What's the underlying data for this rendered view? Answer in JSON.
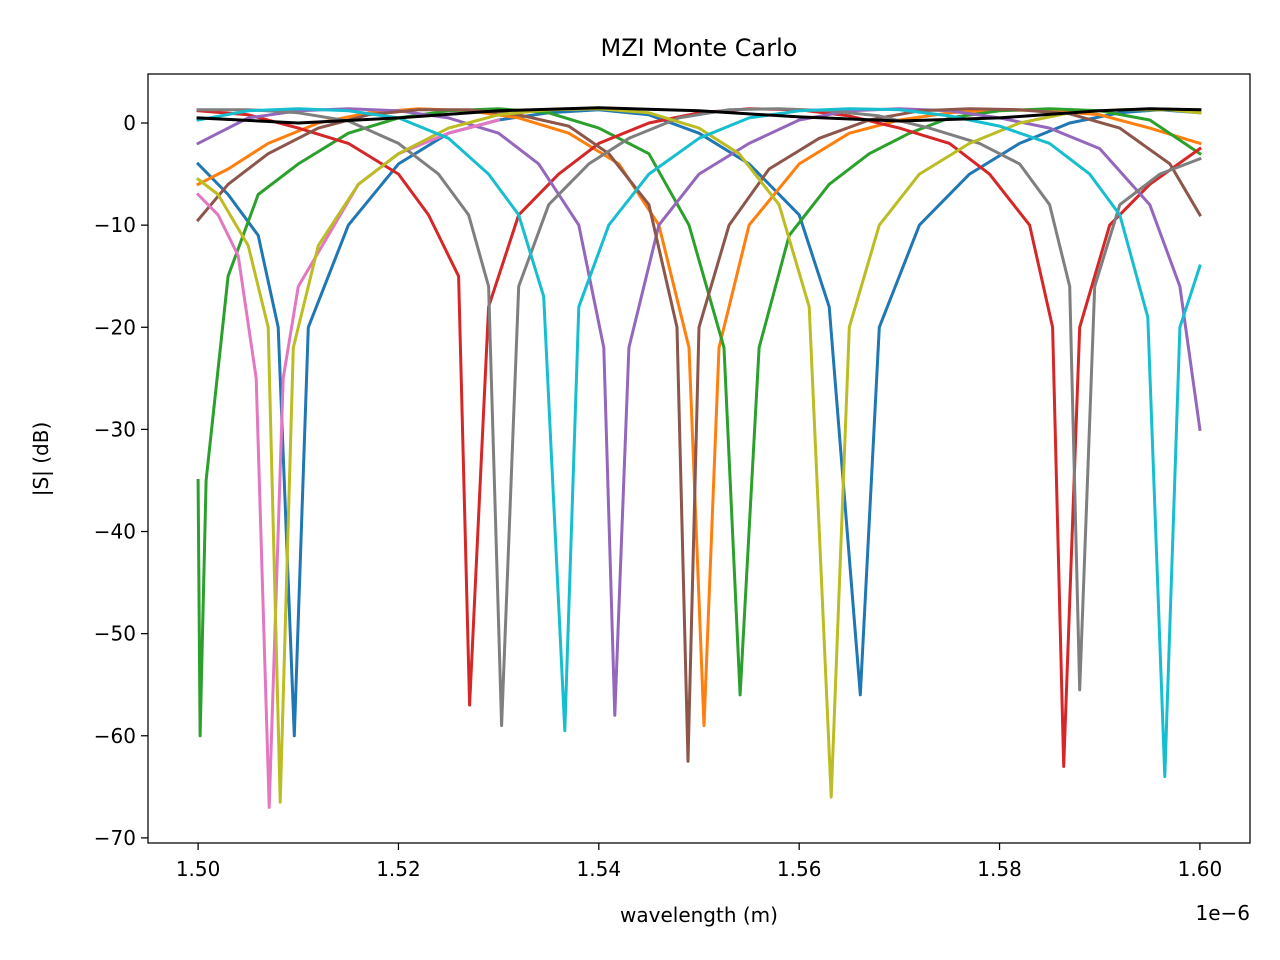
{
  "chart_data": {
    "type": "line",
    "title": "MZI Monte Carlo",
    "xlabel": "wavelength (m)",
    "ylabel": "|S| (dB)",
    "x_offset_label": "1e−6",
    "xlim": [
      1.495,
      1.605
    ],
    "ylim": [
      -70.5,
      4.8
    ],
    "x_ticks": [
      1.5,
      1.52,
      1.54,
      1.56,
      1.58,
      1.6
    ],
    "x_tick_labels": [
      "1.50",
      "1.52",
      "1.54",
      "1.56",
      "1.58",
      "1.60"
    ],
    "y_ticks": [
      0,
      -10,
      -20,
      -30,
      -40,
      -50,
      -60,
      -70
    ],
    "y_tick_labels": [
      "0",
      "−10",
      "−20",
      "−30",
      "−40",
      "−50",
      "−60",
      "−70"
    ],
    "grid": false,
    "series": [
      {
        "color": "#1f77b4",
        "values": [
          [
            1.5,
            -4
          ],
          [
            1.503,
            -7
          ],
          [
            1.506,
            -11
          ],
          [
            1.508,
            -20
          ],
          [
            1.5096,
            -60
          ],
          [
            1.511,
            -20
          ],
          [
            1.515,
            -10
          ],
          [
            1.52,
            -4
          ],
          [
            1.525,
            -1
          ],
          [
            1.53,
            0.3
          ],
          [
            1.535,
            1
          ],
          [
            1.54,
            1.3
          ],
          [
            1.545,
            0.8
          ],
          [
            1.55,
            -1
          ],
          [
            1.555,
            -4
          ],
          [
            1.56,
            -9
          ],
          [
            1.563,
            -18
          ],
          [
            1.5661,
            -56
          ],
          [
            1.568,
            -20
          ],
          [
            1.572,
            -10
          ],
          [
            1.577,
            -5
          ],
          [
            1.582,
            -2
          ],
          [
            1.587,
            0
          ],
          [
            1.592,
            1
          ],
          [
            1.596,
            1.3
          ],
          [
            1.6,
            1
          ]
        ]
      },
      {
        "color": "#ff7f0e",
        "values": [
          [
            1.5,
            -6
          ],
          [
            1.503,
            -4.5
          ],
          [
            1.507,
            -2
          ],
          [
            1.512,
            0
          ],
          [
            1.517,
            1
          ],
          [
            1.522,
            1.4
          ],
          [
            1.527,
            1.2
          ],
          [
            1.532,
            0.5
          ],
          [
            1.537,
            -1
          ],
          [
            1.542,
            -4
          ],
          [
            1.546,
            -10
          ],
          [
            1.549,
            -22
          ],
          [
            1.5505,
            -59
          ],
          [
            1.552,
            -22
          ],
          [
            1.555,
            -10
          ],
          [
            1.56,
            -4
          ],
          [
            1.565,
            -1
          ],
          [
            1.57,
            0.3
          ],
          [
            1.575,
            1
          ],
          [
            1.58,
            1.3
          ],
          [
            1.585,
            1.2
          ],
          [
            1.59,
            0.8
          ],
          [
            1.595,
            -0.5
          ],
          [
            1.6,
            -2
          ]
        ]
      },
      {
        "color": "#2ca02c",
        "values": [
          [
            1.5,
            -35
          ],
          [
            1.5002,
            -60
          ],
          [
            1.5008,
            -35
          ],
          [
            1.503,
            -15
          ],
          [
            1.506,
            -7
          ],
          [
            1.51,
            -4
          ],
          [
            1.515,
            -1
          ],
          [
            1.52,
            0.5
          ],
          [
            1.525,
            1.2
          ],
          [
            1.53,
            1.4
          ],
          [
            1.535,
            1
          ],
          [
            1.54,
            -0.5
          ],
          [
            1.545,
            -3
          ],
          [
            1.549,
            -10
          ],
          [
            1.5525,
            -22
          ],
          [
            1.5541,
            -56
          ],
          [
            1.556,
            -22
          ],
          [
            1.559,
            -11
          ],
          [
            1.563,
            -6
          ],
          [
            1.567,
            -3
          ],
          [
            1.571,
            -1
          ],
          [
            1.575,
            0.5
          ],
          [
            1.58,
            1.2
          ],
          [
            1.585,
            1.4
          ],
          [
            1.59,
            1.2
          ],
          [
            1.595,
            0.3
          ],
          [
            1.6,
            -3
          ]
        ]
      },
      {
        "color": "#d62728",
        "values": [
          [
            1.5,
            1.2
          ],
          [
            1.505,
            0.8
          ],
          [
            1.51,
            -0.5
          ],
          [
            1.515,
            -2
          ],
          [
            1.52,
            -5
          ],
          [
            1.523,
            -9
          ],
          [
            1.526,
            -15
          ],
          [
            1.5271,
            -57
          ],
          [
            1.529,
            -18
          ],
          [
            1.532,
            -9
          ],
          [
            1.536,
            -5
          ],
          [
            1.54,
            -2
          ],
          [
            1.545,
            0
          ],
          [
            1.55,
            1
          ],
          [
            1.555,
            1.4
          ],
          [
            1.56,
            1.3
          ],
          [
            1.565,
            0.7
          ],
          [
            1.57,
            -0.5
          ],
          [
            1.575,
            -2
          ],
          [
            1.579,
            -5
          ],
          [
            1.583,
            -10
          ],
          [
            1.5853,
            -20
          ],
          [
            1.5864,
            -63
          ],
          [
            1.588,
            -20
          ],
          [
            1.591,
            -10
          ],
          [
            1.595,
            -6
          ],
          [
            1.6,
            -2.5
          ]
        ]
      },
      {
        "color": "#9467bd",
        "values": [
          [
            1.5,
            -2
          ],
          [
            1.505,
            0.5
          ],
          [
            1.51,
            1.2
          ],
          [
            1.515,
            1.4
          ],
          [
            1.52,
            1.2
          ],
          [
            1.525,
            0.5
          ],
          [
            1.53,
            -1
          ],
          [
            1.534,
            -4
          ],
          [
            1.538,
            -10
          ],
          [
            1.5405,
            -22
          ],
          [
            1.5416,
            -58
          ],
          [
            1.543,
            -22
          ],
          [
            1.546,
            -10
          ],
          [
            1.55,
            -5
          ],
          [
            1.555,
            -2
          ],
          [
            1.56,
            0.3
          ],
          [
            1.565,
            1.2
          ],
          [
            1.57,
            1.4
          ],
          [
            1.575,
            1.2
          ],
          [
            1.58,
            0.5
          ],
          [
            1.585,
            -0.5
          ],
          [
            1.59,
            -2.5
          ],
          [
            1.595,
            -8
          ],
          [
            1.598,
            -16
          ],
          [
            1.6,
            -30
          ]
        ]
      },
      {
        "color": "#8c564b",
        "values": [
          [
            1.5,
            -9.5
          ],
          [
            1.503,
            -6
          ],
          [
            1.507,
            -3
          ],
          [
            1.512,
            -0.5
          ],
          [
            1.517,
            0.8
          ],
          [
            1.522,
            1.3
          ],
          [
            1.527,
            1.3
          ],
          [
            1.532,
            0.8
          ],
          [
            1.537,
            -0.3
          ],
          [
            1.541,
            -3
          ],
          [
            1.545,
            -8
          ],
          [
            1.5478,
            -20
          ],
          [
            1.5489,
            -62.5
          ],
          [
            1.55,
            -20
          ],
          [
            1.553,
            -10
          ],
          [
            1.557,
            -4.5
          ],
          [
            1.562,
            -1.5
          ],
          [
            1.567,
            0.3
          ],
          [
            1.572,
            1.2
          ],
          [
            1.577,
            1.4
          ],
          [
            1.582,
            1.3
          ],
          [
            1.587,
            0.9
          ],
          [
            1.592,
            -0.5
          ],
          [
            1.597,
            -4
          ],
          [
            1.6,
            -9
          ]
        ]
      },
      {
        "color": "#e377c2",
        "values": [
          [
            1.5,
            -7
          ],
          [
            1.502,
            -9
          ],
          [
            1.504,
            -13
          ],
          [
            1.5058,
            -25
          ],
          [
            1.5071,
            -67
          ],
          [
            1.5085,
            -25
          ],
          [
            1.51,
            -16
          ],
          [
            1.513,
            -11
          ],
          [
            1.516,
            -6
          ],
          [
            1.52,
            -3
          ],
          [
            1.525,
            -1
          ],
          [
            1.53,
            0.3
          ]
        ]
      },
      {
        "color": "#7f7f7f",
        "values": [
          [
            1.5,
            1.3
          ],
          [
            1.505,
            1.3
          ],
          [
            1.51,
            1
          ],
          [
            1.515,
            0.2
          ],
          [
            1.52,
            -2
          ],
          [
            1.524,
            -5
          ],
          [
            1.527,
            -9
          ],
          [
            1.529,
            -16
          ],
          [
            1.5303,
            -59
          ],
          [
            1.532,
            -16
          ],
          [
            1.535,
            -8
          ],
          [
            1.539,
            -4
          ],
          [
            1.543,
            -1.5
          ],
          [
            1.548,
            0.5
          ],
          [
            1.553,
            1.3
          ],
          [
            1.558,
            1.4
          ],
          [
            1.563,
            1.2
          ],
          [
            1.568,
            0.7
          ],
          [
            1.573,
            -0.5
          ],
          [
            1.578,
            -2
          ],
          [
            1.582,
            -4
          ],
          [
            1.585,
            -8
          ],
          [
            1.587,
            -16
          ],
          [
            1.588,
            -55.5
          ],
          [
            1.5895,
            -16
          ],
          [
            1.592,
            -8
          ],
          [
            1.596,
            -5
          ],
          [
            1.6,
            -3.5
          ]
        ]
      },
      {
        "color": "#bcbd22",
        "values": [
          [
            1.5,
            -5.5
          ],
          [
            1.502,
            -7
          ],
          [
            1.505,
            -12
          ],
          [
            1.507,
            -20
          ],
          [
            1.5082,
            -66.5
          ],
          [
            1.5095,
            -22
          ],
          [
            1.512,
            -12
          ],
          [
            1.516,
            -6
          ],
          [
            1.52,
            -3
          ],
          [
            1.525,
            -0.5
          ],
          [
            1.53,
            0.8
          ],
          [
            1.535,
            1.3
          ],
          [
            1.54,
            1.4
          ],
          [
            1.545,
            1
          ],
          [
            1.55,
            -0.5
          ],
          [
            1.554,
            -3
          ],
          [
            1.558,
            -8
          ],
          [
            1.561,
            -18
          ],
          [
            1.5632,
            -66
          ],
          [
            1.565,
            -20
          ],
          [
            1.568,
            -10
          ],
          [
            1.572,
            -5
          ],
          [
            1.577,
            -2
          ],
          [
            1.582,
            0
          ],
          [
            1.587,
            1
          ],
          [
            1.592,
            1.3
          ],
          [
            1.597,
            1.3
          ],
          [
            1.6,
            1
          ]
        ]
      },
      {
        "color": "#17becf",
        "values": [
          [
            1.5,
            0.3
          ],
          [
            1.505,
            1.2
          ],
          [
            1.51,
            1.4
          ],
          [
            1.515,
            1.2
          ],
          [
            1.52,
            0.5
          ],
          [
            1.525,
            -1.5
          ],
          [
            1.529,
            -5
          ],
          [
            1.532,
            -9
          ],
          [
            1.5345,
            -17
          ],
          [
            1.5366,
            -59.5
          ],
          [
            1.538,
            -18
          ],
          [
            1.541,
            -10
          ],
          [
            1.545,
            -5
          ],
          [
            1.55,
            -1.5
          ],
          [
            1.555,
            0.5
          ],
          [
            1.56,
            1.2
          ],
          [
            1.565,
            1.4
          ],
          [
            1.57,
            1.3
          ],
          [
            1.575,
            0.7
          ],
          [
            1.58,
            -0.3
          ],
          [
            1.585,
            -2
          ],
          [
            1.589,
            -5
          ],
          [
            1.592,
            -9
          ],
          [
            1.5948,
            -19
          ],
          [
            1.5965,
            -64
          ],
          [
            1.598,
            -20
          ],
          [
            1.6,
            -14
          ]
        ]
      },
      {
        "color": "#000000",
        "values": [
          [
            1.5,
            0.5
          ],
          [
            1.51,
            0
          ],
          [
            1.52,
            0.5
          ],
          [
            1.53,
            1.2
          ],
          [
            1.54,
            1.5
          ],
          [
            1.55,
            1.2
          ],
          [
            1.56,
            0.6
          ],
          [
            1.57,
            0.2
          ],
          [
            1.58,
            0.5
          ],
          [
            1.59,
            1.2
          ],
          [
            1.595,
            1.4
          ],
          [
            1.6,
            1.3
          ]
        ]
      }
    ]
  }
}
